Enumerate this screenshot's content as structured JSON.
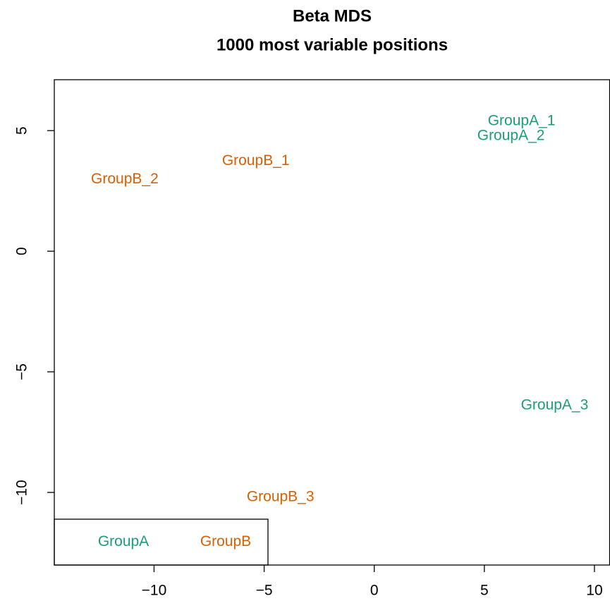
{
  "chart_data": {
    "type": "text-scatter",
    "title": "Beta MDS",
    "subtitle": "1000 most variable positions",
    "xlim": [
      -14.53,
      10.69
    ],
    "ylim": [
      -13.01,
      7.11
    ],
    "xticks": [
      {
        "value": -10,
        "label": "−10"
      },
      {
        "value": -5,
        "label": "−5"
      },
      0,
      5,
      10
    ],
    "yticks": [
      {
        "value": -10,
        "label": "−10"
      },
      {
        "value": -5,
        "label": "−5"
      },
      0,
      5
    ],
    "legend": "bottomleft",
    "series": [
      {
        "name": "GroupA",
        "color": "#1b9e77",
        "labels": [
          "GroupA_1",
          "GroupA_2",
          "GroupA_3"
        ],
        "x": [
          6.69,
          6.21,
          8.19
        ],
        "values": [
          5.38,
          4.77,
          -6.4
        ]
      },
      {
        "name": "GroupB",
        "color": "#d95f02",
        "labels": [
          "GroupB_1",
          "GroupB_2",
          "GroupB_3"
        ],
        "x": [
          -5.38,
          -11.33,
          -4.26
        ],
        "values": [
          3.74,
          2.98,
          -10.2
        ]
      }
    ]
  }
}
